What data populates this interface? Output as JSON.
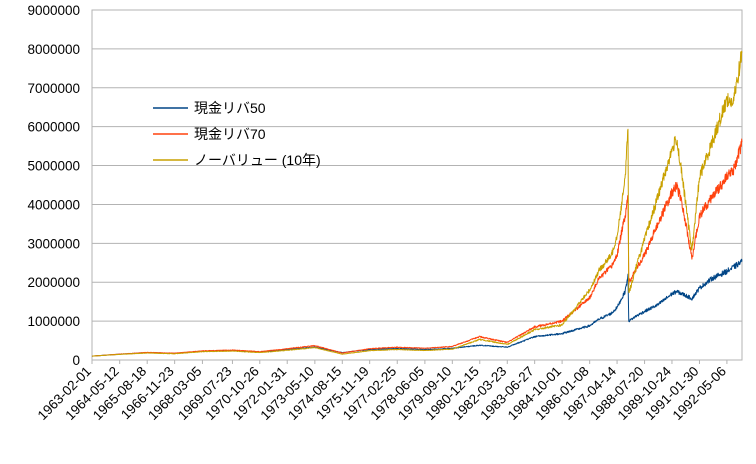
{
  "chart_data": {
    "type": "line",
    "title": "",
    "xlabel": "",
    "ylabel": "",
    "ylim": [
      0,
      9000000
    ],
    "yticks": [
      0,
      1000000,
      2000000,
      3000000,
      4000000,
      5000000,
      6000000,
      7000000,
      8000000,
      9000000
    ],
    "ytick_labels": [
      "0",
      "1000000",
      "2000000",
      "3000000",
      "4000000",
      "5000000",
      "6000000",
      "7000000",
      "8000000",
      "9000000"
    ],
    "grid": "horizontal",
    "legend_position": "upper-left",
    "x_tick_labels": [
      "1963-02-01",
      "1964-05-12",
      "1965-08-18",
      "1966-11-23",
      "1968-03-05",
      "1969-07-23",
      "1970-10-26",
      "1972-01-31",
      "1973-05-10",
      "1974-08-15",
      "1975-11-19",
      "1977-02-25",
      "1978-06-05",
      "1979-09-10",
      "1980-12-15",
      "1982-03-23",
      "1983-06-27",
      "1984-10-01",
      "1986-01-08",
      "1987-04-14",
      "1988-07-20",
      "1989-10-24",
      "1991-01-30",
      "1992-05-06"
    ],
    "x": [
      "1963-02-01",
      "1964-05-12",
      "1965-08-18",
      "1966-11-23",
      "1968-03-05",
      "1969-07-23",
      "1970-10-26",
      "1972-01-31",
      "1973-05-10",
      "1974-08-15",
      "1975-11-19",
      "1977-02-25",
      "1978-06-05",
      "1979-09-10",
      "1980-12-15",
      "1982-03-23",
      "1983-06-27",
      "1984-10-01",
      "1986-01-08",
      "1986-06-15",
      "1987-01-10",
      "1987-04-14",
      "1987-08-25",
      "1987-10-15",
      "1987-10-28",
      "1988-03-01",
      "1988-07-20",
      "1989-03-01",
      "1989-10-24",
      "1990-01-10",
      "1990-04-15",
      "1990-09-25",
      "1991-01-30",
      "1991-09-01",
      "1992-05-06",
      "1992-08-20",
      "1993-01-15"
    ],
    "series": [
      {
        "name": "現金リバ50",
        "color": "#004586",
        "values": [
          100000,
          150000,
          190000,
          170000,
          225000,
          240000,
          205000,
          270000,
          330000,
          190000,
          270000,
          295000,
          270000,
          300000,
          380000,
          330000,
          600000,
          680000,
          880000,
          1050000,
          1200000,
          1350000,
          1750000,
          2150000,
          1000000,
          1130000,
          1250000,
          1420000,
          1700000,
          1760000,
          1700000,
          1580000,
          1850000,
          2100000,
          2280000,
          2380000,
          2530000
        ]
      },
      {
        "name": "現金リバ70",
        "color": "#ff420e",
        "values": [
          100000,
          150000,
          195000,
          175000,
          235000,
          255000,
          215000,
          290000,
          370000,
          180000,
          290000,
          330000,
          300000,
          350000,
          600000,
          450000,
          850000,
          1000000,
          1600000,
          2100000,
          2400000,
          2700000,
          3700000,
          4200000,
          2000000,
          2350000,
          2700000,
          3500000,
          4300000,
          4500000,
          4000000,
          2600000,
          3700000,
          4200000,
          4700000,
          4850000,
          5600000
        ]
      },
      {
        "name": "ノーバリュー (10年)",
        "color": "#c9a100",
        "values": [
          100000,
          145000,
          180000,
          160000,
          215000,
          230000,
          190000,
          250000,
          320000,
          150000,
          240000,
          270000,
          245000,
          280000,
          530000,
          400000,
          780000,
          900000,
          1800000,
          2300000,
          2700000,
          3200000,
          4600000,
          6000000,
          1700000,
          2400000,
          3100000,
          4200000,
          5400000,
          5700000,
          4700000,
          2800000,
          4700000,
          5600000,
          6700000,
          6600000,
          7900000
        ]
      }
    ]
  },
  "legend": {
    "items": [
      {
        "label": "現金リバ50"
      },
      {
        "label": "現金リバ70"
      },
      {
        "label": "ノーバリュー (10年)"
      }
    ]
  }
}
